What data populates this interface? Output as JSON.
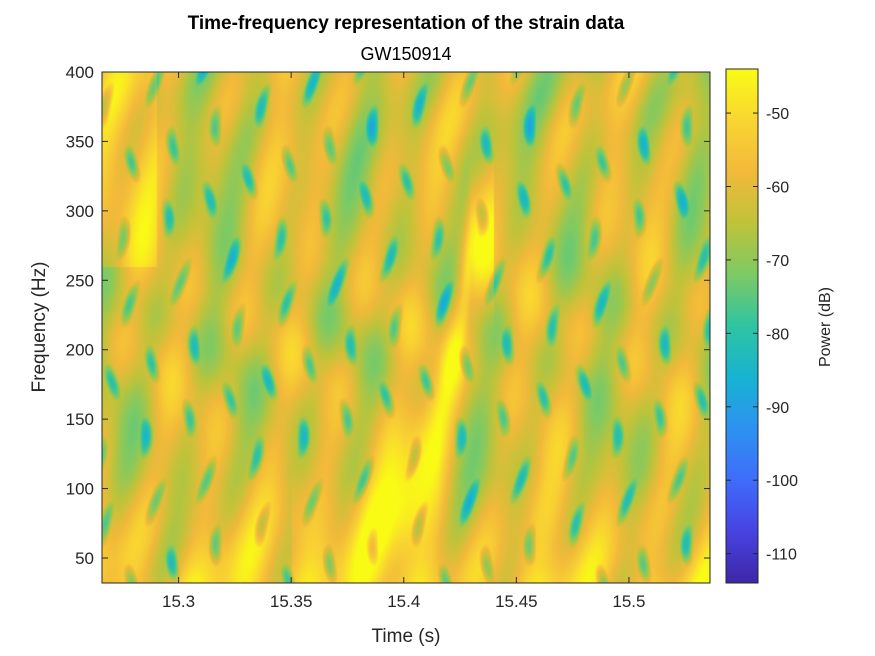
{
  "chart_data": {
    "type": "heatmap",
    "title": "Time-frequency representation of the strain data",
    "subtitle": "GW150914",
    "xlabel": "Time (s)",
    "ylabel": "Frequency (Hz)",
    "xlim": [
      15.266,
      15.536
    ],
    "ylim": [
      32,
      400
    ],
    "xticks": [
      15.3,
      15.35,
      15.4,
      15.45,
      15.5
    ],
    "xtick_labels": [
      "15.3",
      "15.35",
      "15.4",
      "15.45",
      "15.5"
    ],
    "yticks": [
      50,
      100,
      150,
      200,
      250,
      300,
      350,
      400
    ],
    "ytick_labels": [
      "50",
      "100",
      "150",
      "200",
      "250",
      "300",
      "350",
      "400"
    ],
    "colormap": "parula",
    "colorbar": {
      "label": "Power (dB)",
      "clim": [
        -114,
        -44
      ],
      "ticks": [
        -110,
        -100,
        -90,
        -80,
        -70,
        -60,
        -50
      ],
      "tick_labels": [
        "-110",
        "-100",
        "-90",
        "-80",
        "-70",
        "-60",
        "-50"
      ]
    },
    "features": {
      "background_level_db": -62,
      "chirp_track": {
        "description_values": "frequency rising with time",
        "points": [
          {
            "t": 15.36,
            "f": 60,
            "db": -50
          },
          {
            "t": 15.4,
            "f": 100,
            "db": -48
          },
          {
            "t": 15.415,
            "f": 150,
            "db": -46
          },
          {
            "t": 15.425,
            "f": 220,
            "db": -48
          },
          {
            "t": 15.43,
            "f": 280,
            "db": -54
          }
        ]
      },
      "low_frequency_band": {
        "f_max": 110,
        "db": -52
      }
    }
  }
}
